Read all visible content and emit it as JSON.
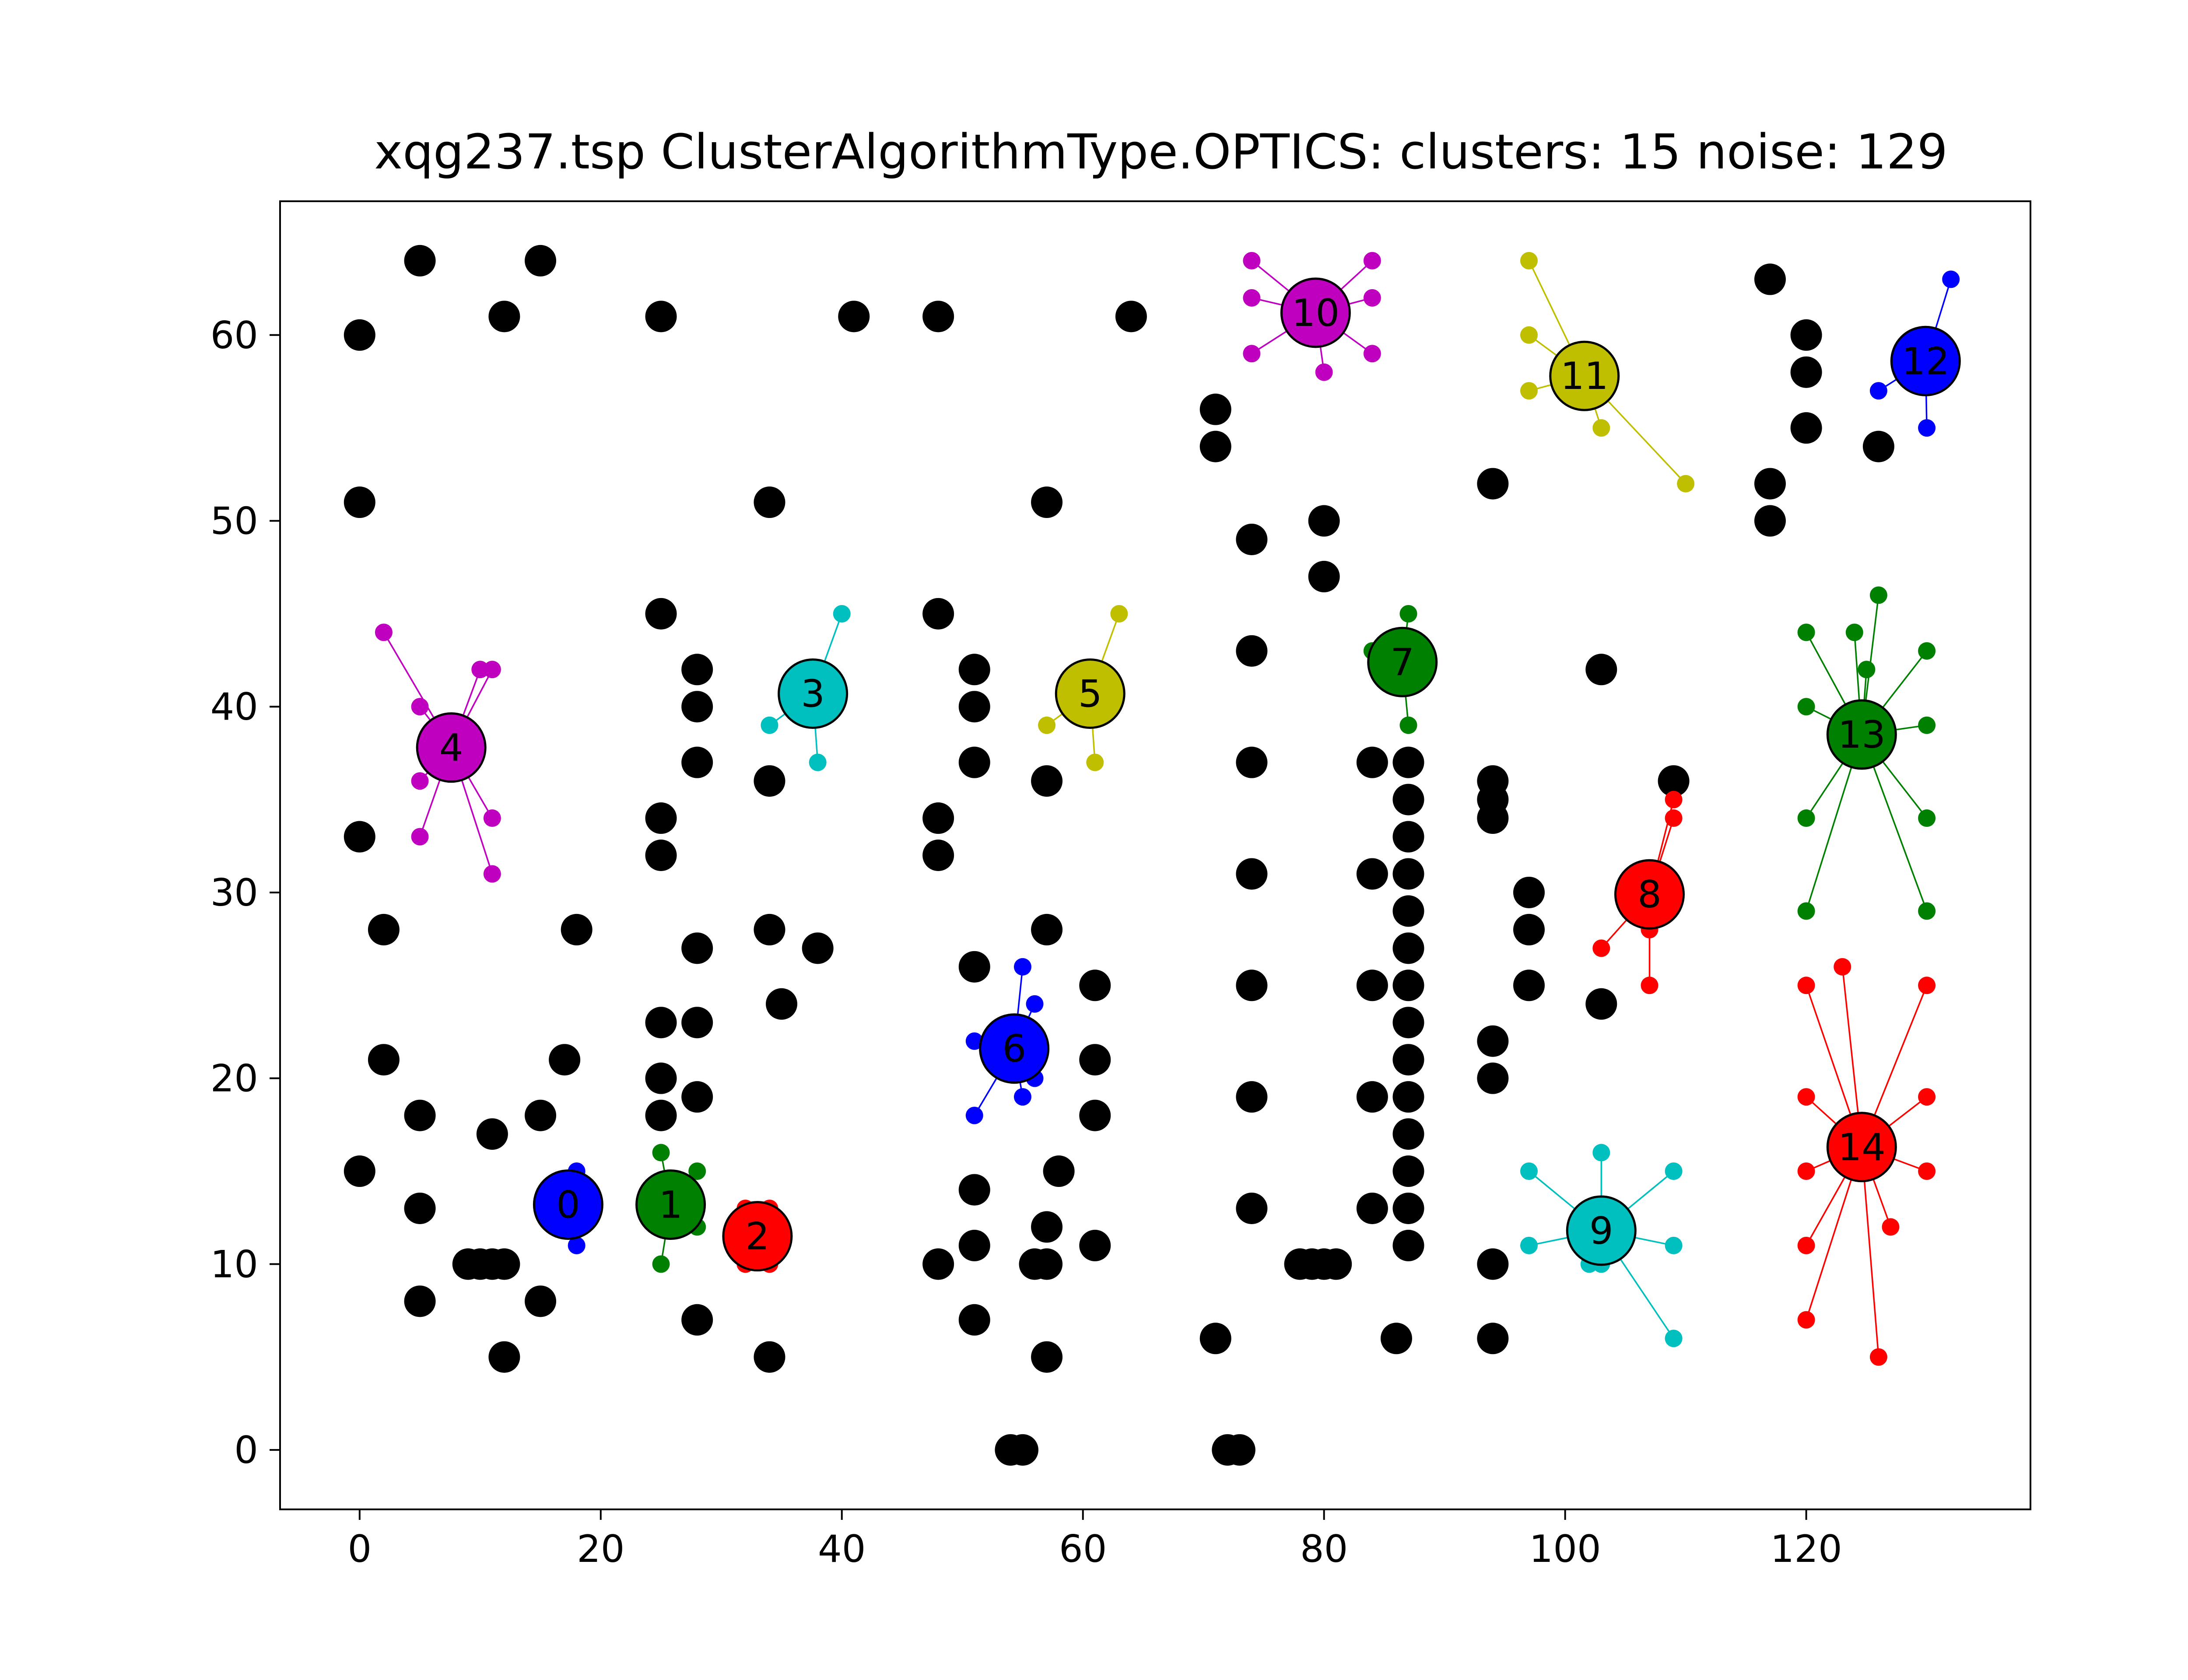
{
  "chart_data": {
    "type": "scatter",
    "title": "xqg237.tsp ClusterAlgorithmType.OPTICS: clusters: 15 noise: 129",
    "xlabel": "",
    "ylabel": "",
    "xlim": [
      -6.6,
      138.6
    ],
    "ylim": [
      -3.2,
      67.2
    ],
    "x_ticks": [
      0,
      20,
      40,
      60,
      80,
      100,
      120
    ],
    "y_ticks": [
      0,
      10,
      20,
      30,
      40,
      50,
      60
    ],
    "grid": false,
    "legend": "none",
    "noise_color": "#000000",
    "noise_points": [
      [
        0,
        60
      ],
      [
        0,
        51
      ],
      [
        0,
        33
      ],
      [
        0,
        15
      ],
      [
        2,
        28
      ],
      [
        2,
        21
      ],
      [
        5,
        64
      ],
      [
        5,
        18
      ],
      [
        5,
        13
      ],
      [
        5,
        8
      ],
      [
        9,
        10
      ],
      [
        10,
        10
      ],
      [
        11,
        10
      ],
      [
        12,
        10
      ],
      [
        11,
        17
      ],
      [
        12,
        61
      ],
      [
        12,
        5
      ],
      [
        15,
        64
      ],
      [
        15,
        18
      ],
      [
        15,
        8
      ],
      [
        17,
        21
      ],
      [
        18,
        28
      ],
      [
        25,
        61
      ],
      [
        25,
        45
      ],
      [
        25,
        34
      ],
      [
        25,
        32
      ],
      [
        25,
        23
      ],
      [
        25,
        20
      ],
      [
        25,
        18
      ],
      [
        28,
        42
      ],
      [
        28,
        40
      ],
      [
        28,
        37
      ],
      [
        28,
        27
      ],
      [
        28,
        23
      ],
      [
        28,
        19
      ],
      [
        28,
        7
      ],
      [
        34,
        51
      ],
      [
        34,
        36
      ],
      [
        34,
        28
      ],
      [
        34,
        5
      ],
      [
        35,
        24
      ],
      [
        38,
        27
      ],
      [
        41,
        61
      ],
      [
        48,
        61
      ],
      [
        48,
        45
      ],
      [
        48,
        34
      ],
      [
        48,
        32
      ],
      [
        48,
        10
      ],
      [
        51,
        42
      ],
      [
        51,
        40
      ],
      [
        51,
        37
      ],
      [
        51,
        26
      ],
      [
        51,
        14
      ],
      [
        51,
        11
      ],
      [
        51,
        7
      ],
      [
        54,
        0
      ],
      [
        55,
        0
      ],
      [
        56,
        10
      ],
      [
        57,
        51
      ],
      [
        57,
        36
      ],
      [
        57,
        28
      ],
      [
        57,
        12
      ],
      [
        57,
        10
      ],
      [
        57,
        5
      ],
      [
        58,
        15
      ],
      [
        61,
        25
      ],
      [
        61,
        21
      ],
      [
        61,
        18
      ],
      [
        61,
        11
      ],
      [
        64,
        61
      ],
      [
        71,
        56
      ],
      [
        71,
        54
      ],
      [
        71,
        6
      ],
      [
        72,
        0
      ],
      [
        73,
        0
      ],
      [
        74,
        49
      ],
      [
        74,
        43
      ],
      [
        74,
        37
      ],
      [
        74,
        31
      ],
      [
        74,
        25
      ],
      [
        74,
        19
      ],
      [
        74,
        13
      ],
      [
        78,
        10
      ],
      [
        79,
        10
      ],
      [
        80,
        10
      ],
      [
        81,
        10
      ],
      [
        80,
        50
      ],
      [
        80,
        47
      ],
      [
        84,
        37
      ],
      [
        84,
        31
      ],
      [
        84,
        25
      ],
      [
        84,
        19
      ],
      [
        84,
        13
      ],
      [
        86,
        6
      ],
      [
        87,
        37
      ],
      [
        87,
        35
      ],
      [
        87,
        33
      ],
      [
        87,
        31
      ],
      [
        87,
        29
      ],
      [
        87,
        27
      ],
      [
        87,
        25
      ],
      [
        87,
        23
      ],
      [
        87,
        21
      ],
      [
        87,
        19
      ],
      [
        87,
        17
      ],
      [
        87,
        15
      ],
      [
        87,
        13
      ],
      [
        87,
        11
      ],
      [
        94,
        52
      ],
      [
        94,
        36
      ],
      [
        94,
        35
      ],
      [
        94,
        34
      ],
      [
        94,
        22
      ],
      [
        94,
        20
      ],
      [
        94,
        10
      ],
      [
        94,
        6
      ],
      [
        97,
        30
      ],
      [
        97,
        28
      ],
      [
        97,
        25
      ],
      [
        103,
        42
      ],
      [
        103,
        24
      ],
      [
        109,
        36
      ],
      [
        117,
        63
      ],
      [
        117,
        52
      ],
      [
        117,
        50
      ],
      [
        120,
        60
      ],
      [
        120,
        58
      ],
      [
        120,
        55
      ],
      [
        126,
        54
      ]
    ],
    "clusters": [
      {
        "label": "0",
        "color": "#0000ff",
        "center": [
          17.3,
          13.2
        ],
        "points": [
          [
            18,
            15
          ],
          [
            18,
            11
          ],
          [
            16,
            13
          ]
        ]
      },
      {
        "label": "1",
        "color": "#008000",
        "center": [
          25.8,
          13.2
        ],
        "points": [
          [
            25,
            16
          ],
          [
            25,
            10
          ],
          [
            28,
            15
          ],
          [
            28,
            12
          ]
        ]
      },
      {
        "label": "2",
        "color": "#ff0000",
        "center": [
          33,
          11.5
        ],
        "points": [
          [
            32,
            13
          ],
          [
            34,
            13
          ],
          [
            32,
            10
          ],
          [
            34,
            10
          ]
        ]
      },
      {
        "label": "3",
        "color": "#00bfbf",
        "center": [
          37.6,
          40.7
        ],
        "points": [
          [
            40,
            45
          ],
          [
            34,
            39
          ],
          [
            38,
            37
          ]
        ]
      },
      {
        "label": "4",
        "color": "#bf00bf",
        "center": [
          7.6,
          37.8
        ],
        "points": [
          [
            2,
            44
          ],
          [
            5,
            40
          ],
          [
            10,
            42
          ],
          [
            11,
            42
          ],
          [
            5,
            36
          ],
          [
            5,
            33
          ],
          [
            11,
            34
          ],
          [
            11,
            31
          ]
        ]
      },
      {
        "label": "5",
        "color": "#bfbf00",
        "center": [
          60.6,
          40.7
        ],
        "points": [
          [
            63,
            45
          ],
          [
            57,
            39
          ],
          [
            61,
            37
          ]
        ]
      },
      {
        "label": "6",
        "color": "#0000ff",
        "center": [
          54.3,
          21.6
        ],
        "points": [
          [
            55,
            26
          ],
          [
            56,
            24
          ],
          [
            51,
            22
          ],
          [
            56,
            20
          ],
          [
            55,
            19
          ],
          [
            51,
            18
          ]
        ]
      },
      {
        "label": "7",
        "color": "#008000",
        "center": [
          86.5,
          42.4
        ],
        "points": [
          [
            87,
            45
          ],
          [
            84,
            43
          ],
          [
            87,
            39
          ]
        ]
      },
      {
        "label": "8",
        "color": "#ff0000",
        "center": [
          107,
          29.9
        ],
        "points": [
          [
            109,
            35
          ],
          [
            109,
            34
          ],
          [
            103,
            27
          ],
          [
            107,
            28
          ],
          [
            107,
            25
          ]
        ]
      },
      {
        "label": "9",
        "color": "#00bfbf",
        "center": [
          103,
          11.8
        ],
        "points": [
          [
            97,
            15
          ],
          [
            103,
            16
          ],
          [
            109,
            15
          ],
          [
            97,
            11
          ],
          [
            103,
            10
          ],
          [
            109,
            11
          ],
          [
            109,
            6
          ],
          [
            102,
            10
          ]
        ]
      },
      {
        "label": "10",
        "color": "#bf00bf",
        "center": [
          79.3,
          61.2
        ],
        "points": [
          [
            74,
            64
          ],
          [
            84,
            64
          ],
          [
            74,
            62
          ],
          [
            84,
            62
          ],
          [
            74,
            59
          ],
          [
            84,
            59
          ],
          [
            80,
            58
          ]
        ]
      },
      {
        "label": "11",
        "color": "#bfbf00",
        "center": [
          101.6,
          57.8
        ],
        "points": [
          [
            97,
            64
          ],
          [
            97,
            60
          ],
          [
            97,
            57
          ],
          [
            103,
            55
          ],
          [
            110,
            52
          ]
        ]
      },
      {
        "label": "12",
        "color": "#0000ff",
        "center": [
          129.9,
          58.6
        ],
        "points": [
          [
            132,
            63
          ],
          [
            126,
            57
          ],
          [
            130,
            55
          ]
        ]
      },
      {
        "label": "13",
        "color": "#008000",
        "center": [
          124.6,
          38.5
        ],
        "points": [
          [
            120,
            44
          ],
          [
            124,
            44
          ],
          [
            126,
            46
          ],
          [
            125,
            42
          ],
          [
            130,
            43
          ],
          [
            120,
            40
          ],
          [
            130,
            39
          ],
          [
            120,
            34
          ],
          [
            130,
            34
          ],
          [
            120,
            29
          ],
          [
            130,
            29
          ]
        ]
      },
      {
        "label": "14",
        "color": "#ff0000",
        "center": [
          124.6,
          16.3
        ],
        "points": [
          [
            120,
            25
          ],
          [
            123,
            26
          ],
          [
            130,
            25
          ],
          [
            120,
            19
          ],
          [
            130,
            19
          ],
          [
            120,
            15
          ],
          [
            130,
            15
          ],
          [
            120,
            11
          ],
          [
            127,
            12
          ],
          [
            120,
            7
          ],
          [
            126,
            5
          ]
        ]
      }
    ]
  }
}
